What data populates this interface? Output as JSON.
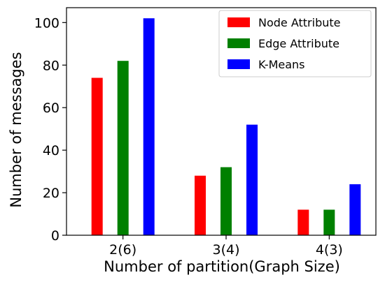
{
  "chart_data": {
    "type": "bar",
    "title": "",
    "xlabel": "Number of partition(Graph Size)",
    "ylabel": "Number of messages",
    "categories": [
      "2(6)",
      "3(4)",
      "4(3)"
    ],
    "ylim": [
      0,
      107
    ],
    "yticks": [
      0,
      20,
      40,
      60,
      80,
      100
    ],
    "grid": false,
    "legend_position": "top-right",
    "series": [
      {
        "name": "Node Attribute",
        "color": "#ff0000",
        "values": [
          74,
          28,
          12
        ]
      },
      {
        "name": "Edge Attribute",
        "color": "#008000",
        "values": [
          82,
          32,
          12
        ]
      },
      {
        "name": "K-Means",
        "color": "#0000ff",
        "values": [
          102,
          52,
          24
        ]
      }
    ]
  }
}
